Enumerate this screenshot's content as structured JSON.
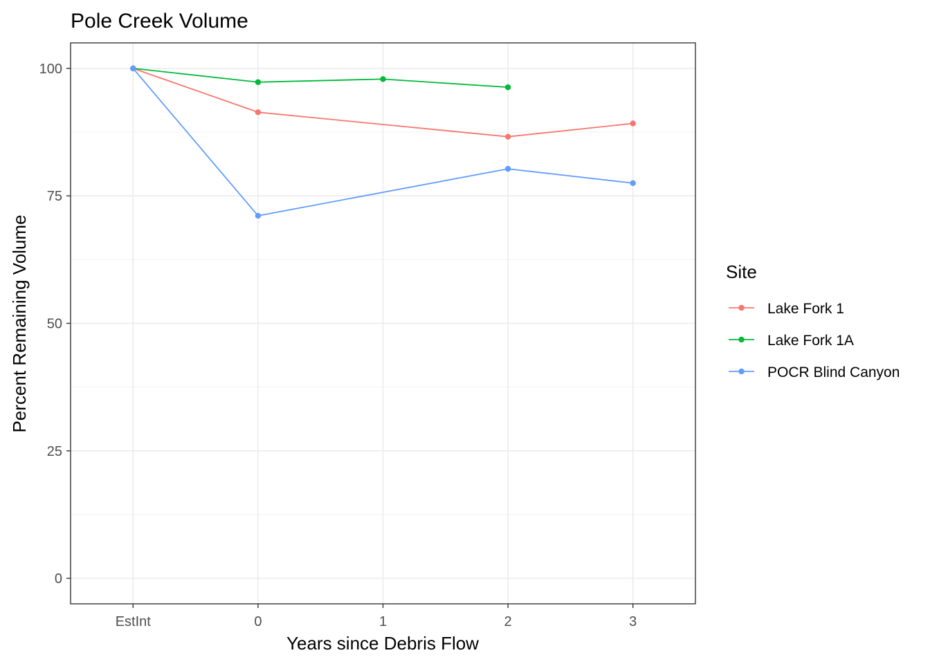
{
  "chart_data": {
    "type": "line",
    "title": "Pole Creek Volume",
    "xlabel": "Years since Debris Flow",
    "ylabel": "Percent Remaining Volume",
    "categories": [
      "EstInt",
      "0",
      "1",
      "2",
      "3"
    ],
    "yticks": [
      0,
      25,
      50,
      75,
      100
    ],
    "ylim": [
      -5,
      105
    ],
    "grid": true,
    "legend": {
      "title": "Site",
      "position": "right"
    },
    "series": [
      {
        "name": "Lake Fork 1",
        "color": "#F8766D",
        "points": [
          {
            "x": "EstInt",
            "y": 100
          },
          {
            "x": "0",
            "y": 91.4
          },
          {
            "x": "2",
            "y": 86.6
          },
          {
            "x": "3",
            "y": 89.2
          }
        ]
      },
      {
        "name": "Lake Fork 1A",
        "color": "#00BA38",
        "points": [
          {
            "x": "EstInt",
            "y": 100
          },
          {
            "x": "0",
            "y": 97.3
          },
          {
            "x": "1",
            "y": 97.9
          },
          {
            "x": "2",
            "y": 96.3
          }
        ]
      },
      {
        "name": "POCR Blind Canyon",
        "color": "#619CFF",
        "points": [
          {
            "x": "EstInt",
            "y": 100
          },
          {
            "x": "0",
            "y": 71.1
          },
          {
            "x": "2",
            "y": 80.3
          },
          {
            "x": "3",
            "y": 77.5
          }
        ]
      }
    ]
  }
}
